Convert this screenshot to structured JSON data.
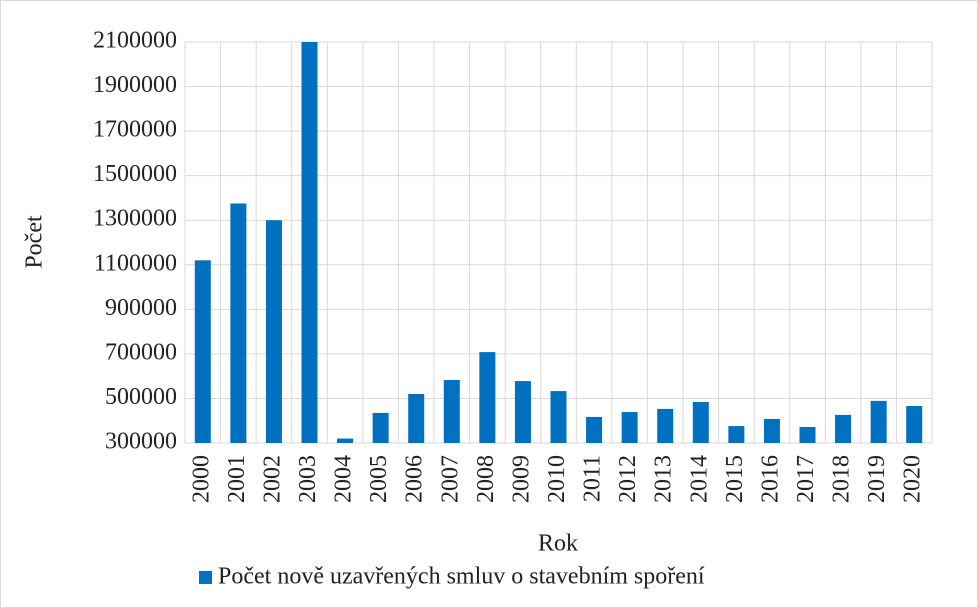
{
  "chart_data": {
    "type": "bar",
    "x_label": "Rok",
    "y_label": "Počet",
    "categories": [
      "2000",
      "2001",
      "2002",
      "2003",
      "2004",
      "2005",
      "2006",
      "2007",
      "2008",
      "2009",
      "2010",
      "2011",
      "2012",
      "2013",
      "2014",
      "2015",
      "2016",
      "2017",
      "2018",
      "2019",
      "2020"
    ],
    "series": [
      {
        "name": "Počet nově uzavřených smluv o stavebním spoření",
        "color": "#0070c0",
        "values": [
          1120000,
          1375000,
          1300000,
          2100000,
          320000,
          435000,
          520000,
          583000,
          708000,
          578000,
          533000,
          417000,
          439000,
          453000,
          484000,
          376000,
          408000,
          372000,
          426000,
          489000,
          466000
        ]
      }
    ],
    "ylim": [
      300000,
      2100000
    ],
    "yticks": [
      300000,
      500000,
      700000,
      900000,
      1100000,
      1300000,
      1500000,
      1700000,
      1900000,
      2100000
    ],
    "grid": true,
    "legend": "bottom"
  }
}
